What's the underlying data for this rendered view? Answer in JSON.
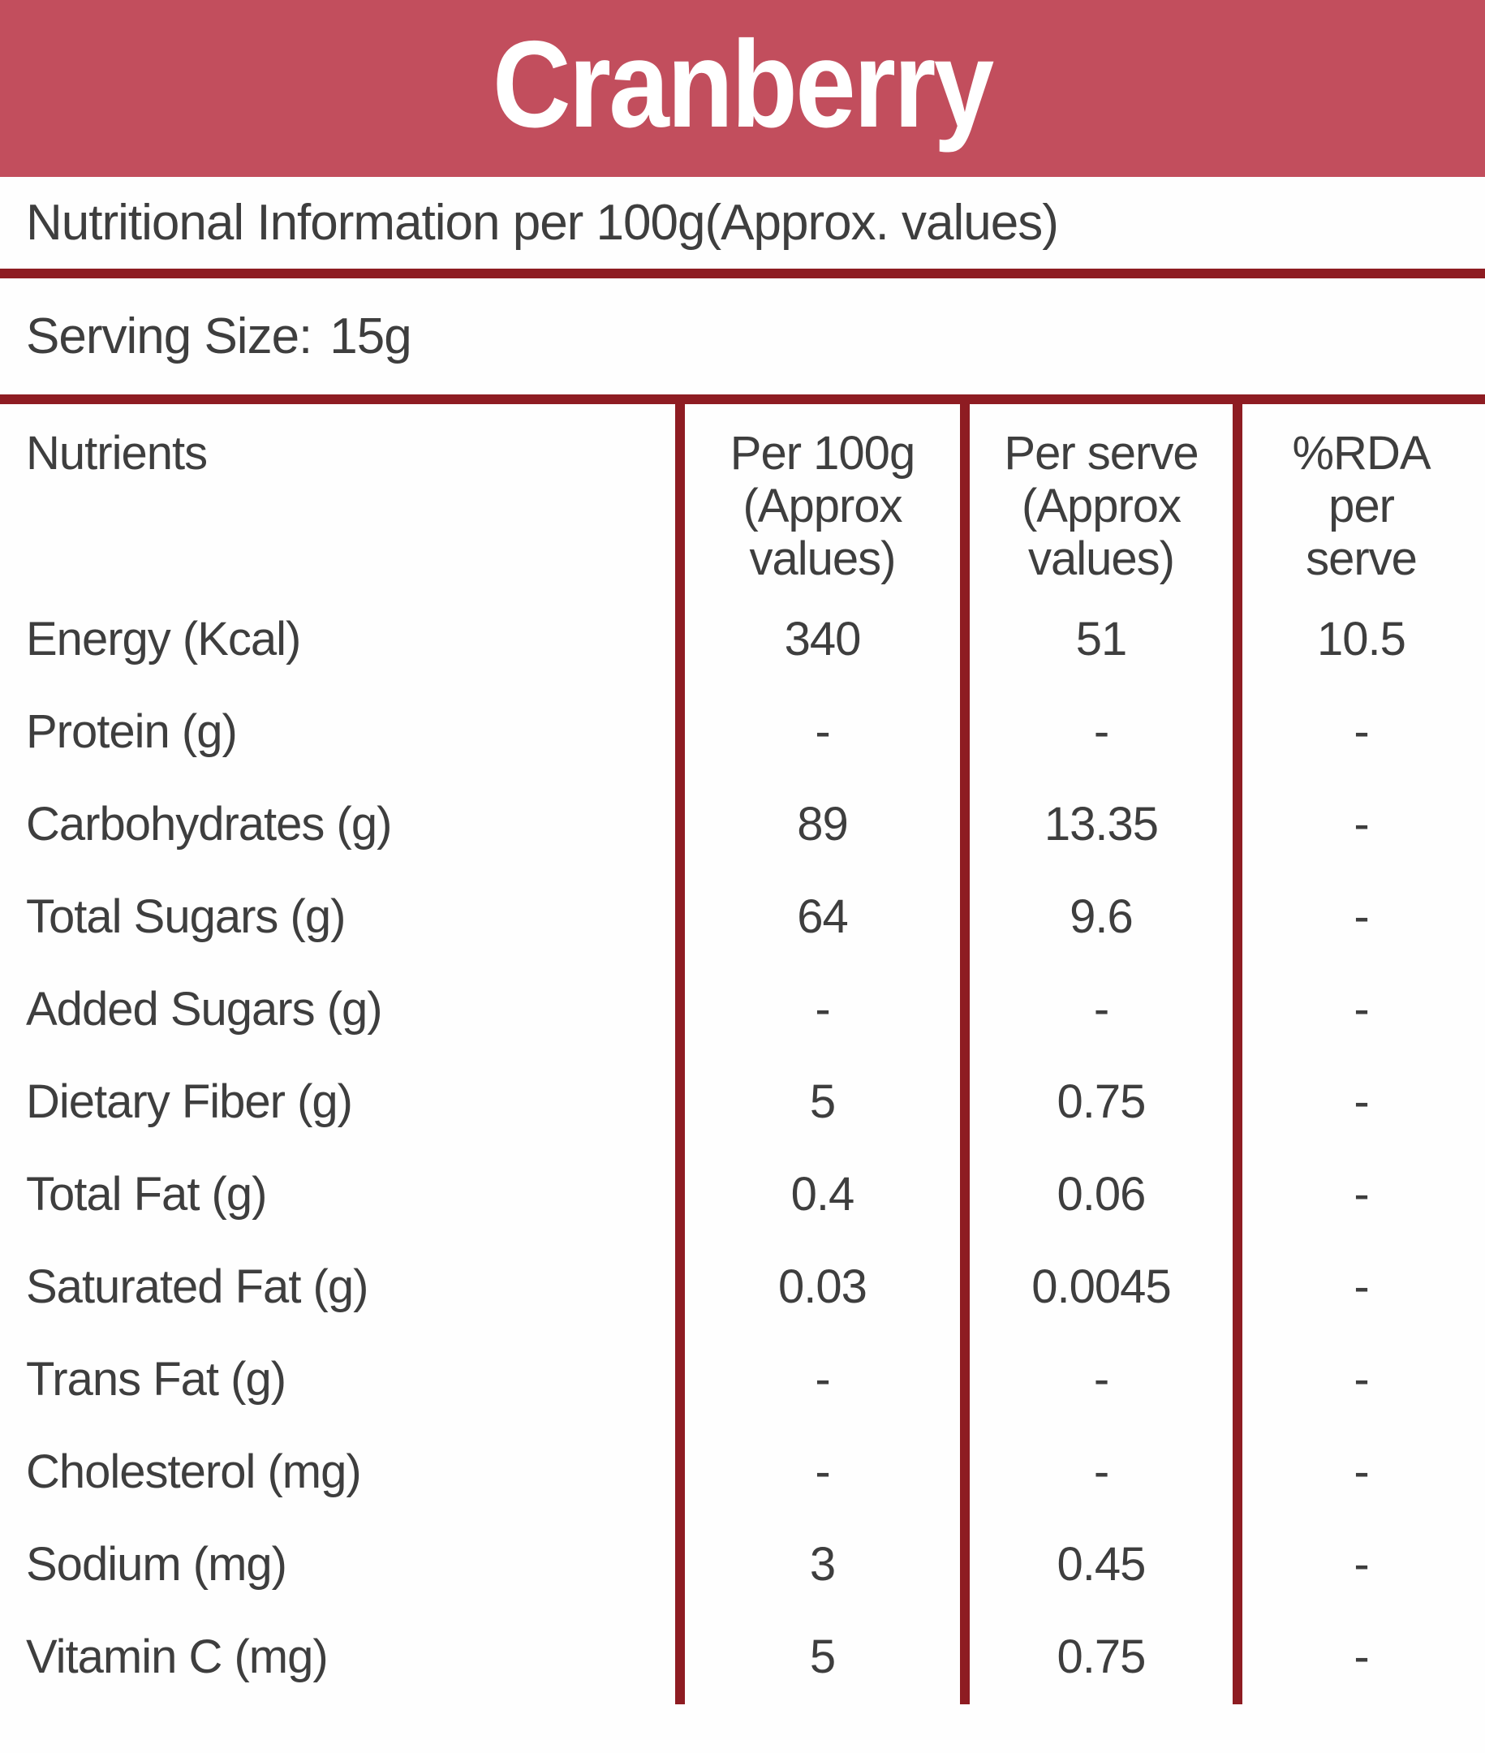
{
  "title": "Cranberry",
  "subtitle": "Nutritional Information per 100g(Approx. values)",
  "serving": {
    "label": "Serving Size:",
    "value": "15g"
  },
  "colors": {
    "banner_red": "#c24e5d",
    "rule_maroon": "#8e1c22",
    "text_gray": "#3e3e3e"
  },
  "table": {
    "columns": {
      "nutrients": "Nutrients",
      "per_100g": "Per 100g\n(Approx\nvalues)",
      "per_serve": "Per serve\n(Approx\nvalues)",
      "rda": "%RDA\nper\nserve"
    },
    "rows": [
      {
        "nutrient": "Energy (Kcal)",
        "per_100g": "340",
        "per_serve": "51",
        "rda": "10.5"
      },
      {
        "nutrient": "Protein (g)",
        "per_100g": "-",
        "per_serve": "-",
        "rda": "-"
      },
      {
        "nutrient": "Carbohydrates (g)",
        "per_100g": "89",
        "per_serve": "13.35",
        "rda": "-"
      },
      {
        "nutrient": "Total Sugars (g)",
        "per_100g": "64",
        "per_serve": "9.6",
        "rda": "-"
      },
      {
        "nutrient": "Added Sugars (g)",
        "per_100g": "-",
        "per_serve": "-",
        "rda": "-"
      },
      {
        "nutrient": "Dietary Fiber (g)",
        "per_100g": "5",
        "per_serve": "0.75",
        "rda": "-"
      },
      {
        "nutrient": "Total Fat (g)",
        "per_100g": "0.4",
        "per_serve": "0.06",
        "rda": "-"
      },
      {
        "nutrient": "Saturated Fat (g)",
        "per_100g": "0.03",
        "per_serve": "0.0045",
        "rda": "-"
      },
      {
        "nutrient": "Trans Fat (g)",
        "per_100g": "-",
        "per_serve": "-",
        "rda": "-"
      },
      {
        "nutrient": "Cholesterol (mg)",
        "per_100g": "-",
        "per_serve": "-",
        "rda": "-"
      },
      {
        "nutrient": "Sodium (mg)",
        "per_100g": "3",
        "per_serve": "0.45",
        "rda": "-"
      },
      {
        "nutrient": "Vitamin C (mg)",
        "per_100g": "5",
        "per_serve": "0.75",
        "rda": "-"
      }
    ]
  }
}
